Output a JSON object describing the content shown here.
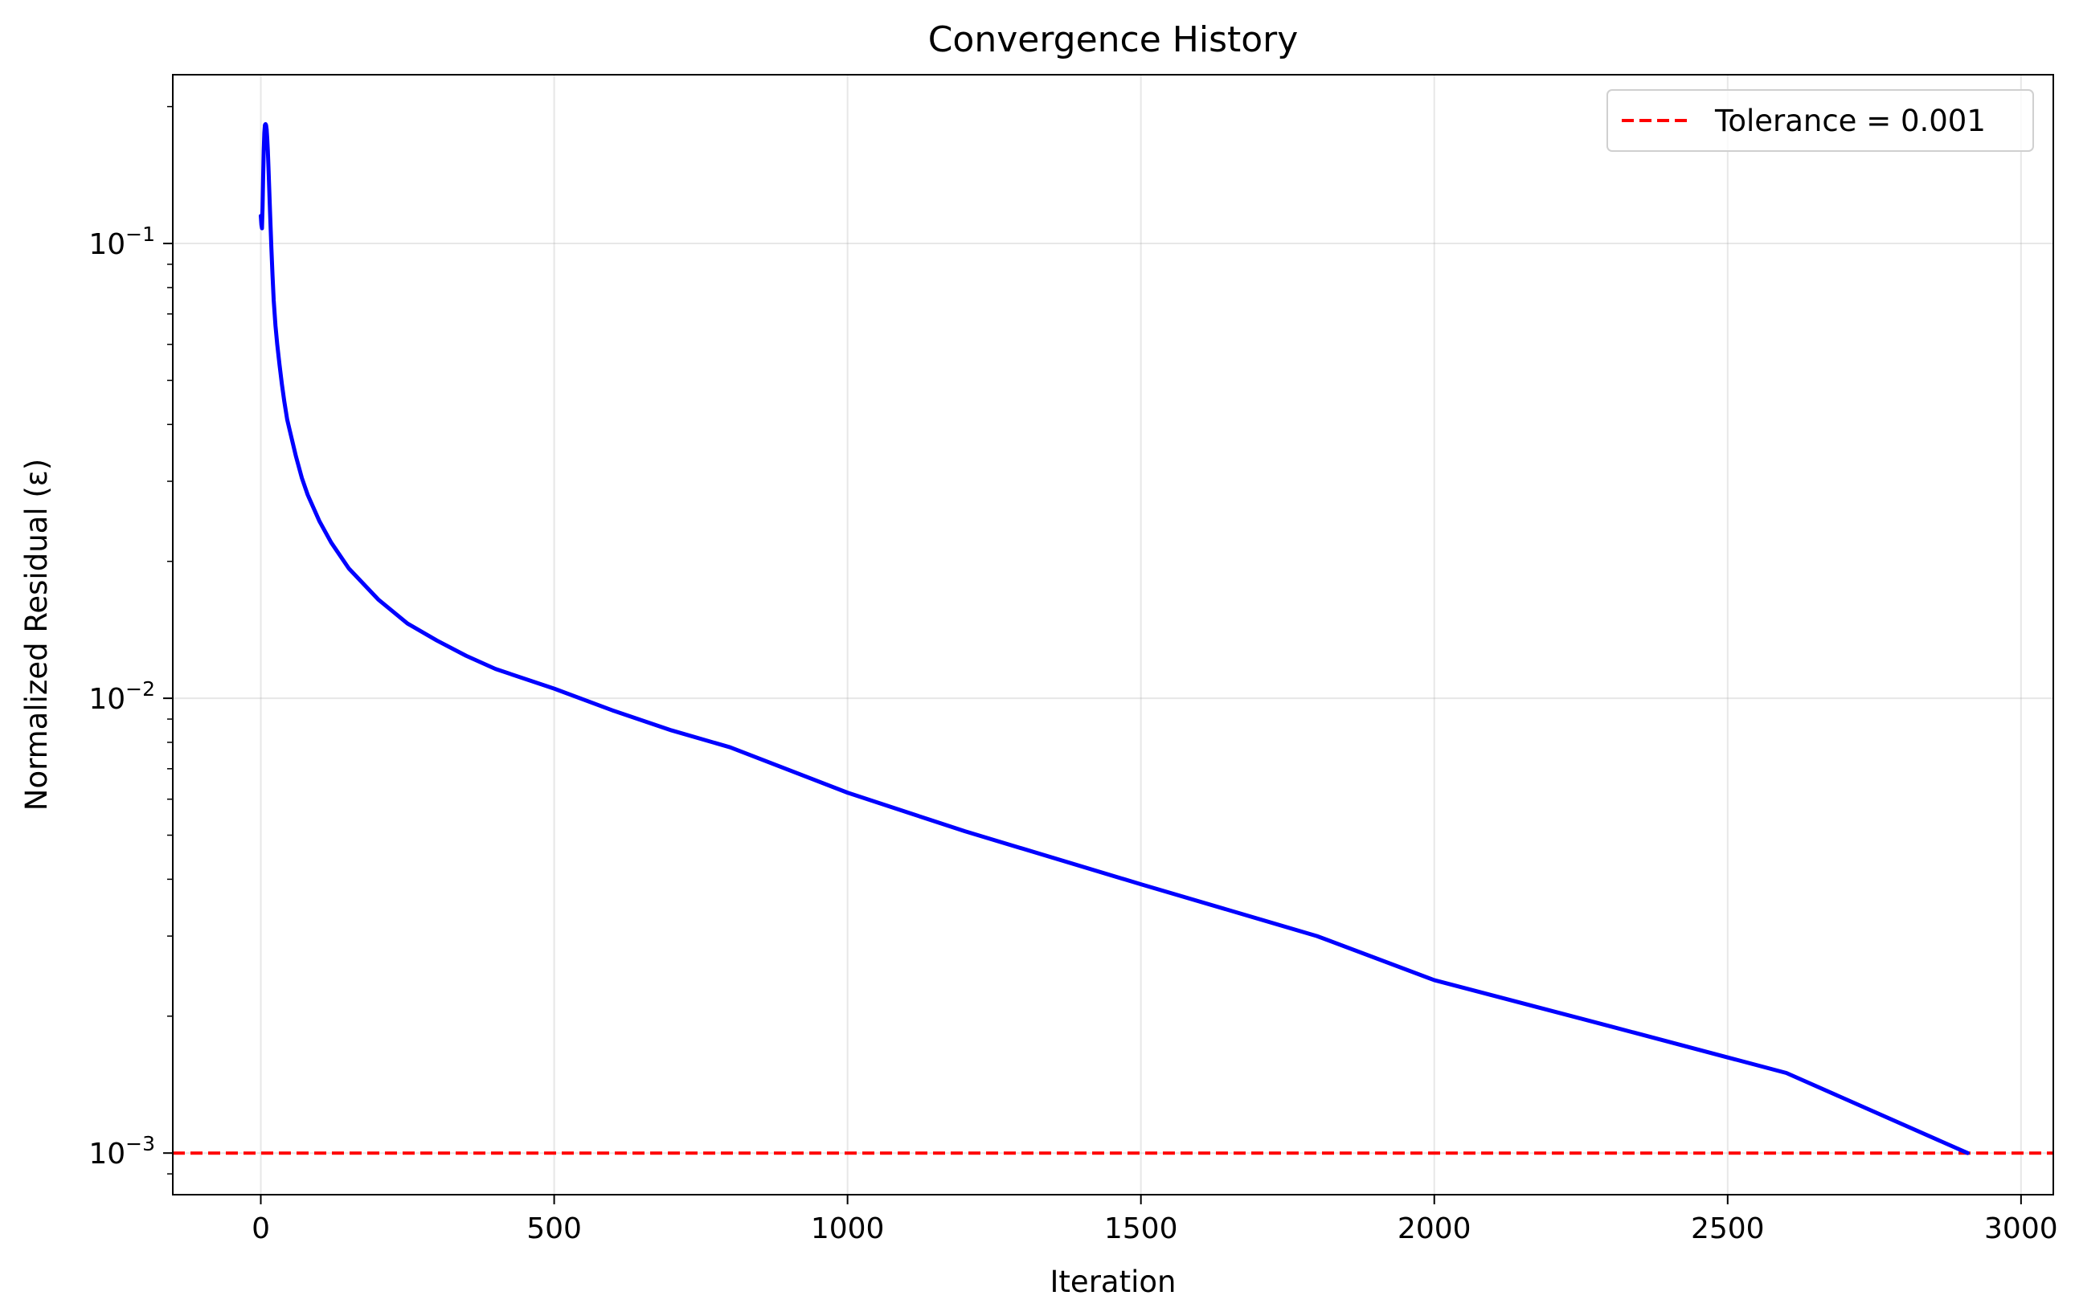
{
  "chart_data": {
    "type": "line",
    "title": "Convergence History",
    "xlabel": "Iteration",
    "ylabel": "Normalized Residual (ε)",
    "xlim": [
      -150,
      3055
    ],
    "ylim": [
      0.00081,
      0.235
    ],
    "yscale": "log",
    "xticks": [
      {
        "value": 0,
        "label": "0"
      },
      {
        "value": 500,
        "label": "500"
      },
      {
        "value": 1000,
        "label": "1000"
      },
      {
        "value": 1500,
        "label": "1500"
      },
      {
        "value": 2000,
        "label": "2000"
      },
      {
        "value": 2500,
        "label": "2500"
      },
      {
        "value": 3000,
        "label": "3000"
      }
    ],
    "yticks": [
      {
        "value": 0.1,
        "base": "10",
        "exp": "−1"
      },
      {
        "value": 0.01,
        "base": "10",
        "exp": "−2"
      },
      {
        "value": 0.001,
        "base": "10",
        "exp": "−3"
      }
    ],
    "grid": true,
    "legend_position": "top-right",
    "series": [
      {
        "name": "Residual",
        "color": "#0000ff",
        "in_legend": false,
        "x": [
          0,
          1,
          2,
          3,
          4,
          5,
          6,
          7,
          8,
          9,
          10,
          11,
          12,
          13,
          14,
          16,
          18,
          20,
          22,
          25,
          28,
          32,
          36,
          40,
          45,
          50,
          60,
          70,
          80,
          100,
          120,
          150,
          200,
          250,
          300,
          350,
          400,
          500,
          600,
          700,
          800,
          1000,
          1200,
          1500,
          1800,
          2000,
          2300,
          2600,
          2909
        ],
        "y": [
          0.115,
          0.11,
          0.108,
          0.12,
          0.14,
          0.16,
          0.175,
          0.182,
          0.183,
          0.182,
          0.178,
          0.17,
          0.16,
          0.148,
          0.136,
          0.115,
          0.098,
          0.085,
          0.075,
          0.066,
          0.06,
          0.054,
          0.049,
          0.045,
          0.041,
          0.0385,
          0.034,
          0.0305,
          0.028,
          0.0245,
          0.022,
          0.0193,
          0.0165,
          0.0146,
          0.0134,
          0.0124,
          0.0116,
          0.0105,
          0.0094,
          0.0085,
          0.0078,
          0.0062,
          0.0051,
          0.0039,
          0.003,
          0.0024,
          0.0019,
          0.0015,
          0.001
        ]
      }
    ],
    "reference_lines": [
      {
        "name": "Tolerance = 0.001",
        "y": 0.001,
        "color": "#ff0000",
        "style": "dashed"
      }
    ]
  }
}
